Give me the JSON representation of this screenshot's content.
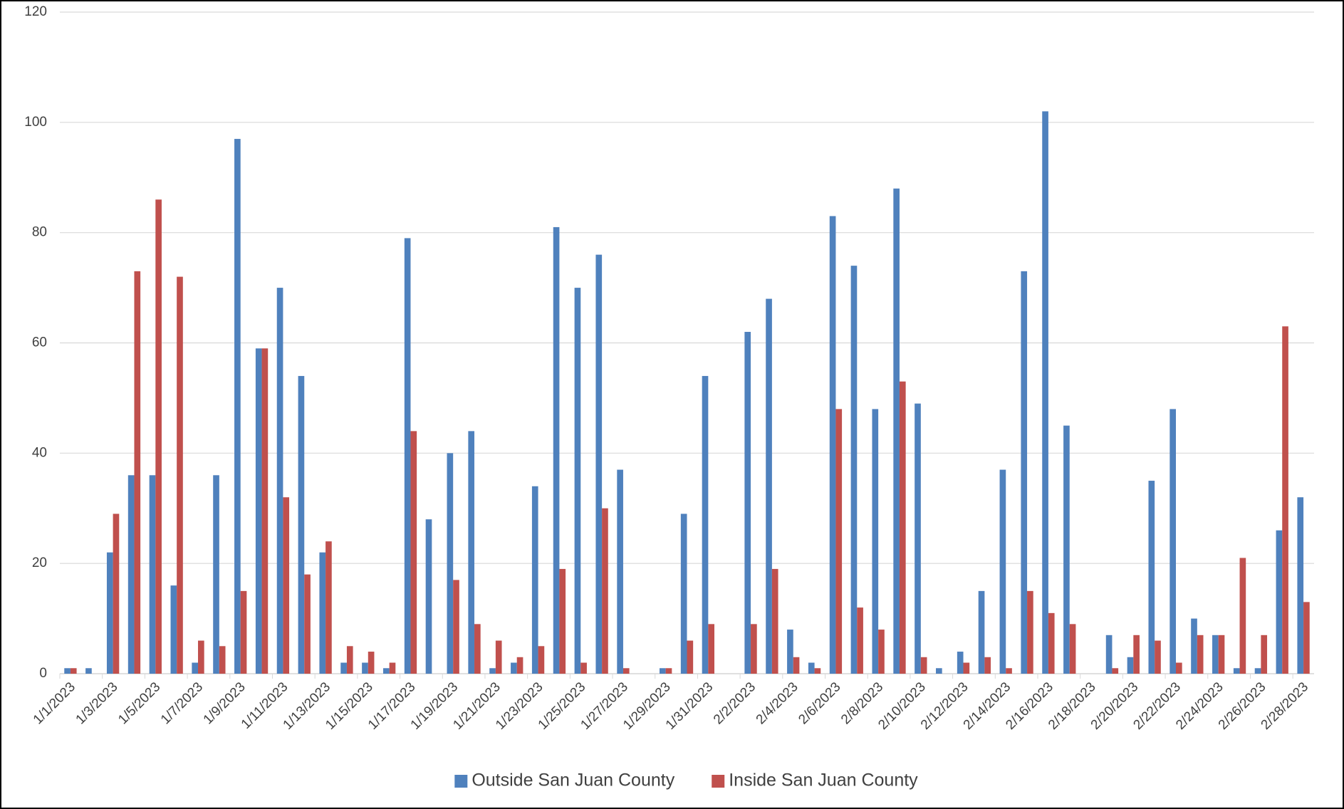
{
  "chart_data": {
    "type": "bar",
    "categories": [
      "1/1/2023",
      null,
      "1/3/2023",
      null,
      "1/5/2023",
      null,
      "1/7/2023",
      null,
      "1/9/2023",
      null,
      "1/11/2023",
      null,
      "1/13/2023",
      null,
      "1/15/2023",
      null,
      "1/17/2023",
      null,
      "1/19/2023",
      null,
      "1/21/2023",
      null,
      "1/23/2023",
      null,
      "1/25/2023",
      null,
      "1/27/2023",
      null,
      "1/29/2023",
      null,
      "1/31/2023",
      null,
      "2/2/2023",
      null,
      "2/4/2023",
      null,
      "2/6/2023",
      null,
      "2/8/2023",
      null,
      "2/10/2023",
      null,
      "2/12/2023",
      null,
      "2/14/2023",
      null,
      "2/16/2023",
      null,
      "2/18/2023",
      null,
      "2/20/2023",
      null,
      "2/22/2023",
      null,
      "2/24/2023",
      null,
      "2/26/2023",
      null,
      "2/28/2023"
    ],
    "series": [
      {
        "name": "Outside San Juan County",
        "color": "#4f81bd",
        "values": [
          1,
          1,
          22,
          36,
          36,
          16,
          2,
          36,
          97,
          59,
          70,
          54,
          22,
          2,
          2,
          1,
          79,
          28,
          40,
          44,
          1,
          2,
          34,
          81,
          70,
          76,
          37,
          0,
          1,
          29,
          54,
          0,
          62,
          68,
          8,
          2,
          83,
          74,
          48,
          88,
          49,
          1,
          4,
          15,
          37,
          73,
          102,
          45,
          0,
          7,
          3,
          35,
          48,
          10,
          7,
          1,
          1,
          26,
          32
        ]
      },
      {
        "name": "Inside San Juan County",
        "color": "#c0504d",
        "values": [
          1,
          0,
          29,
          73,
          86,
          72,
          6,
          5,
          15,
          59,
          32,
          18,
          24,
          5,
          4,
          2,
          44,
          0,
          17,
          9,
          6,
          3,
          5,
          19,
          2,
          30,
          1,
          0,
          1,
          6,
          9,
          0,
          9,
          19,
          3,
          1,
          48,
          12,
          8,
          53,
          3,
          0,
          2,
          3,
          1,
          15,
          11,
          9,
          0,
          1,
          7,
          6,
          2,
          7,
          7,
          21,
          7,
          63,
          13
        ]
      }
    ],
    "ylim": [
      0,
      120
    ],
    "yticks": [
      0,
      20,
      40,
      60,
      80,
      100,
      120
    ],
    "grid": true,
    "legend": "bottom"
  }
}
